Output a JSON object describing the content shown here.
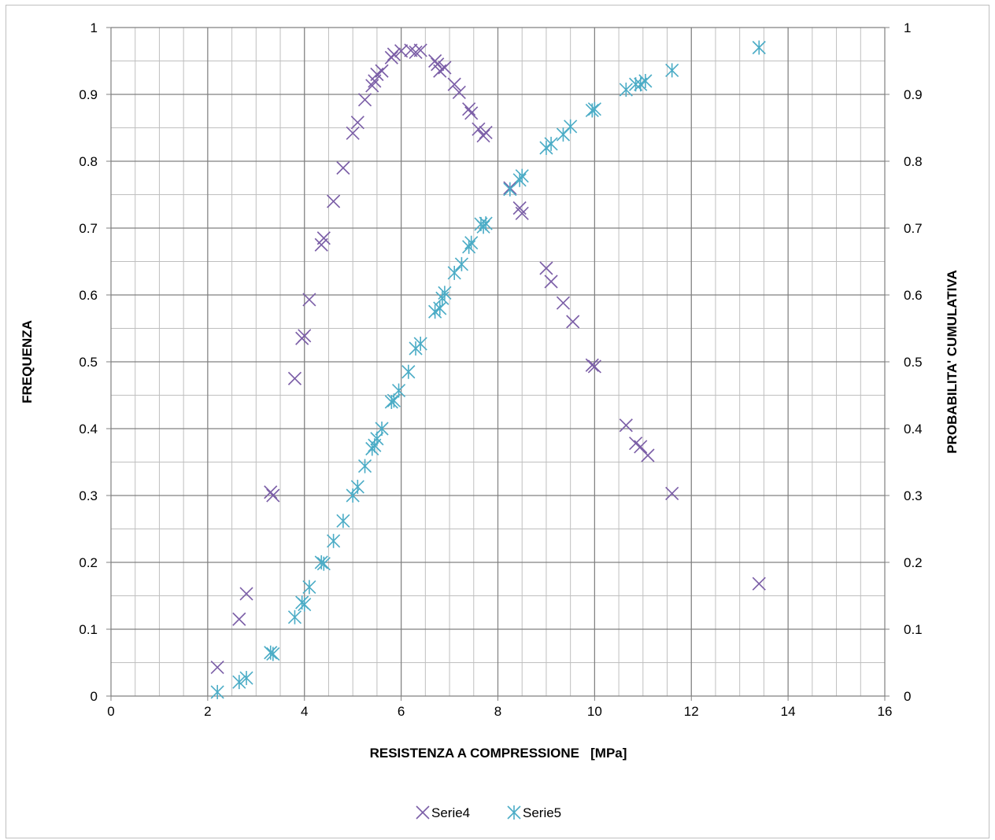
{
  "chart_data": {
    "type": "scatter",
    "xlabel": "RESISTENZA A COMPRESSIONE   [MPa]",
    "ylabel": "FREQUENZA",
    "y2label": "PROBABILITA' CUMULATIVA",
    "xlim": [
      0,
      16
    ],
    "ylim": [
      0,
      1
    ],
    "y2lim": [
      0,
      1
    ],
    "x_ticks": [
      0,
      2,
      4,
      6,
      8,
      10,
      12,
      14,
      16
    ],
    "x_tick_labels": [
      "0",
      "2",
      "4",
      "6",
      "8",
      "10",
      "12",
      "14",
      "16"
    ],
    "y_ticks": [
      0,
      0.1,
      0.2,
      0.3,
      0.4,
      0.5,
      0.6,
      0.7,
      0.8,
      0.9,
      1
    ],
    "y_tick_labels": [
      "0",
      "0.1",
      "0.2",
      "0.3",
      "0.4",
      "0.5",
      "0.6",
      "0.7",
      "0.8",
      "0.9",
      "1"
    ],
    "y2_tick_labels": [
      "0",
      "0.1",
      "0.2",
      "0.3",
      "0.4",
      "0.5",
      "0.6",
      "0.7",
      "0.8",
      "0.9",
      "1"
    ],
    "grid": {
      "major": true,
      "minor_x_step": 0.5,
      "minor_y_step": 0.05
    },
    "legend": {
      "position": "bottom"
    },
    "series": [
      {
        "name": "Serie4",
        "marker": "x",
        "axis": "left",
        "color": "#7b5ea7",
        "points": [
          [
            2.2,
            0.043
          ],
          [
            2.65,
            0.115
          ],
          [
            2.8,
            0.153
          ],
          [
            3.3,
            0.305
          ],
          [
            3.35,
            0.3
          ],
          [
            3.8,
            0.475
          ],
          [
            3.95,
            0.535
          ],
          [
            4.0,
            0.539
          ],
          [
            4.1,
            0.593
          ],
          [
            4.35,
            0.675
          ],
          [
            4.4,
            0.685
          ],
          [
            4.6,
            0.74
          ],
          [
            4.8,
            0.79
          ],
          [
            5.0,
            0.842
          ],
          [
            5.1,
            0.858
          ],
          [
            5.25,
            0.892
          ],
          [
            5.4,
            0.913
          ],
          [
            5.45,
            0.92
          ],
          [
            5.5,
            0.93
          ],
          [
            5.6,
            0.935
          ],
          [
            5.8,
            0.955
          ],
          [
            5.85,
            0.96
          ],
          [
            6.0,
            0.965
          ],
          [
            6.2,
            0.966
          ],
          [
            6.3,
            0.963
          ],
          [
            6.4,
            0.966
          ],
          [
            6.7,
            0.95
          ],
          [
            6.75,
            0.945
          ],
          [
            6.8,
            0.935
          ],
          [
            6.9,
            0.94
          ],
          [
            7.1,
            0.915
          ],
          [
            7.2,
            0.903
          ],
          [
            7.4,
            0.878
          ],
          [
            7.45,
            0.872
          ],
          [
            7.6,
            0.848
          ],
          [
            7.7,
            0.838
          ],
          [
            7.75,
            0.843
          ],
          [
            8.25,
            0.76
          ],
          [
            8.45,
            0.73
          ],
          [
            8.5,
            0.722
          ],
          [
            9.0,
            0.64
          ],
          [
            9.1,
            0.62
          ],
          [
            9.35,
            0.588
          ],
          [
            9.55,
            0.56
          ],
          [
            9.95,
            0.495
          ],
          [
            10.0,
            0.493
          ],
          [
            10.65,
            0.405
          ],
          [
            10.85,
            0.378
          ],
          [
            10.95,
            0.373
          ],
          [
            11.1,
            0.36
          ],
          [
            11.6,
            0.303
          ],
          [
            13.4,
            0.168
          ]
        ]
      },
      {
        "name": "Serie5",
        "marker": "asterisk",
        "axis": "right",
        "color": "#4bacc6",
        "points": [
          [
            2.2,
            0.006
          ],
          [
            2.65,
            0.021
          ],
          [
            2.8,
            0.027
          ],
          [
            3.3,
            0.065
          ],
          [
            3.35,
            0.063
          ],
          [
            3.8,
            0.118
          ],
          [
            3.95,
            0.14
          ],
          [
            4.0,
            0.137
          ],
          [
            4.1,
            0.163
          ],
          [
            4.35,
            0.2
          ],
          [
            4.4,
            0.198
          ],
          [
            4.6,
            0.232
          ],
          [
            4.8,
            0.262
          ],
          [
            5.0,
            0.3
          ],
          [
            5.1,
            0.313
          ],
          [
            5.25,
            0.344
          ],
          [
            5.4,
            0.37
          ],
          [
            5.45,
            0.375
          ],
          [
            5.5,
            0.385
          ],
          [
            5.6,
            0.4
          ],
          [
            5.8,
            0.44
          ],
          [
            5.85,
            0.442
          ],
          [
            5.95,
            0.457
          ],
          [
            6.15,
            0.485
          ],
          [
            6.3,
            0.52
          ],
          [
            6.4,
            0.527
          ],
          [
            6.7,
            0.575
          ],
          [
            6.8,
            0.58
          ],
          [
            6.85,
            0.595
          ],
          [
            6.9,
            0.603
          ],
          [
            7.1,
            0.633
          ],
          [
            7.25,
            0.646
          ],
          [
            7.4,
            0.672
          ],
          [
            7.45,
            0.678
          ],
          [
            7.65,
            0.706
          ],
          [
            7.7,
            0.702
          ],
          [
            7.75,
            0.707
          ],
          [
            8.25,
            0.758
          ],
          [
            8.45,
            0.772
          ],
          [
            8.5,
            0.778
          ],
          [
            9.0,
            0.82
          ],
          [
            9.1,
            0.826
          ],
          [
            9.35,
            0.84
          ],
          [
            9.5,
            0.852
          ],
          [
            9.95,
            0.876
          ],
          [
            10.0,
            0.878
          ],
          [
            10.65,
            0.907
          ],
          [
            10.85,
            0.915
          ],
          [
            10.95,
            0.915
          ],
          [
            11.05,
            0.92
          ],
          [
            11.6,
            0.936
          ],
          [
            13.4,
            0.97
          ]
        ]
      }
    ]
  }
}
